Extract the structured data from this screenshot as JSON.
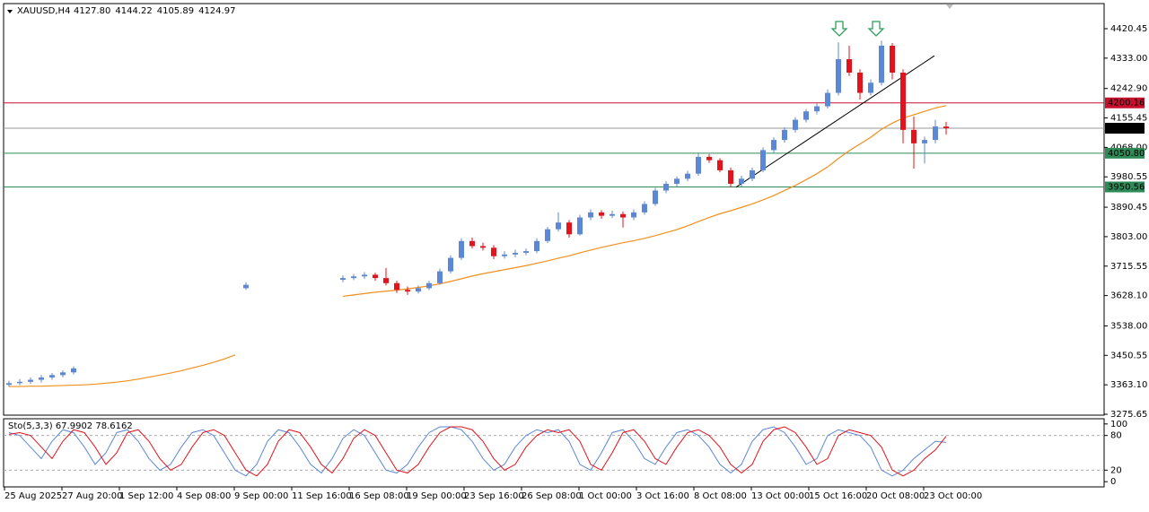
{
  "chart_data": {
    "type": "candlestick",
    "header": {
      "symbol": "XAUUSD,H4",
      "values": [
        "4127.80",
        "4144.22",
        "4105.89",
        "4124.97"
      ]
    },
    "ylim": [
      3273,
      4495
    ],
    "yticks": [
      {
        "value": 4420.45,
        "label": "4420.45"
      },
      {
        "value": 4333,
        "label": "4333.00"
      },
      {
        "value": 4242.9,
        "label": "4242.90"
      },
      4155.45,
      {
        "value": 4068,
        "label": "4068.00"
      },
      3980.55,
      3890.45,
      {
        "value": 3803,
        "label": "3803.00"
      },
      3715.55,
      {
        "value": 3628.1,
        "label": "3628.10"
      },
      {
        "value": 3538,
        "label": "3538.00"
      },
      3450.55,
      {
        "value": 3363.1,
        "label": "3363.10"
      },
      3275.65
    ],
    "x_labels": [
      "25 Aug 2025",
      "27 Aug 20:00",
      "1 Sep 12:00",
      "4 Sep 08:00",
      "9 Sep 00:00",
      "11 Sep 16:00",
      "16 Sep 08:00",
      "19 Sep 00:00",
      "23 Sep 16:00",
      "26 Sep 08:00",
      "1 Oct 00:00",
      "3 Oct 16:00",
      "8 Oct 08:00",
      "13 Oct 00:00",
      "15 Oct 16:00",
      "20 Oct 08:00",
      "23 Oct 00:00"
    ],
    "bull_color": "#5b87d6",
    "bear_color": "#e3131b",
    "candles": [
      [
        3363,
        3375,
        3358,
        3368
      ],
      [
        3368,
        3380,
        3362,
        3372
      ],
      [
        3372,
        3385,
        3366,
        3378
      ],
      [
        3378,
        3392,
        3370,
        3385
      ],
      [
        3385,
        3398,
        3378,
        3392
      ],
      [
        3392,
        3406,
        3385,
        3400
      ],
      [
        3400,
        3418,
        3394,
        3412
      ],
      null,
      null,
      null,
      null,
      null,
      null,
      null,
      null,
      null,
      null,
      null,
      null,
      null,
      null,
      null,
      [
        3650,
        3668,
        3645,
        3660
      ],
      null,
      null,
      null,
      null,
      null,
      null,
      null,
      null,
      [
        3675,
        3688,
        3668,
        3680
      ],
      [
        3680,
        3692,
        3674,
        3685
      ],
      [
        3685,
        3698,
        3678,
        3690
      ],
      [
        3690,
        3696,
        3672,
        3680
      ],
      [
        3680,
        3710,
        3658,
        3665
      ],
      [
        3665,
        3672,
        3636,
        3645
      ],
      [
        3645,
        3655,
        3630,
        3640
      ],
      [
        3640,
        3658,
        3634,
        3650
      ],
      [
        3650,
        3672,
        3644,
        3665
      ],
      [
        3665,
        3708,
        3660,
        3700
      ],
      [
        3700,
        3748,
        3694,
        3740
      ],
      [
        3740,
        3798,
        3734,
        3790
      ],
      [
        3790,
        3800,
        3768,
        3775
      ],
      [
        3775,
        3785,
        3762,
        3770
      ],
      [
        3770,
        3778,
        3736,
        3745
      ],
      [
        3745,
        3760,
        3738,
        3750
      ],
      [
        3750,
        3764,
        3742,
        3755
      ],
      [
        3755,
        3768,
        3748,
        3760
      ],
      [
        3760,
        3798,
        3754,
        3790
      ],
      [
        3790,
        3832,
        3784,
        3825
      ],
      [
        3825,
        3875,
        3818,
        3845
      ],
      [
        3845,
        3852,
        3800,
        3810
      ],
      [
        3810,
        3868,
        3806,
        3860
      ],
      [
        3860,
        3884,
        3852,
        3875
      ],
      [
        3875,
        3882,
        3856,
        3865
      ],
      [
        3865,
        3880,
        3858,
        3870
      ],
      [
        3870,
        3878,
        3830,
        3860
      ],
      [
        3860,
        3884,
        3852,
        3875
      ],
      [
        3875,
        3908,
        3868,
        3900
      ],
      [
        3900,
        3948,
        3894,
        3940
      ],
      [
        3940,
        3968,
        3932,
        3960
      ],
      [
        3960,
        3982,
        3952,
        3975
      ],
      [
        3975,
        3998,
        3968,
        3990
      ],
      [
        3990,
        4050,
        3984,
        4040
      ],
      [
        4040,
        4048,
        4022,
        4030
      ],
      [
        4030,
        4036,
        3994,
        4000
      ],
      [
        4000,
        4008,
        3950,
        3960
      ],
      [
        3960,
        3984,
        3952,
        3975
      ],
      [
        3975,
        4008,
        3968,
        4000
      ],
      [
        4000,
        4068,
        3994,
        4060
      ],
      [
        4060,
        4098,
        4052,
        4090
      ],
      [
        4090,
        4128,
        4082,
        4120
      ],
      [
        4120,
        4158,
        4112,
        4150
      ],
      [
        4150,
        4182,
        4142,
        4175
      ],
      [
        4175,
        4198,
        4166,
        4190
      ],
      [
        4190,
        4240,
        4184,
        4230
      ],
      [
        4230,
        4380,
        4222,
        4330
      ],
      [
        4330,
        4370,
        4280,
        4290
      ],
      [
        4290,
        4300,
        4210,
        4230
      ],
      [
        4230,
        4270,
        4222,
        4260
      ],
      [
        4260,
        4385,
        4252,
        4370
      ],
      [
        4370,
        4378,
        4270,
        4290
      ],
      [
        4290,
        4300,
        4080,
        4120
      ],
      [
        4120,
        4160,
        4005,
        4080
      ],
      [
        4080,
        4100,
        4020,
        4090
      ],
      [
        4090,
        4150,
        4080,
        4130
      ],
      [
        4130,
        4144,
        4106,
        4125
      ]
    ],
    "ma": {
      "color": "#f0901e",
      "values": [
        3358,
        3358,
        3359,
        3359,
        3360,
        3361,
        3362,
        3363,
        3365,
        3368,
        3371,
        3375,
        3380,
        3386,
        3392,
        3398,
        3405,
        3413,
        3421,
        3430,
        3440,
        3452,
        null,
        null,
        null,
        null,
        null,
        null,
        null,
        null,
        null,
        3626,
        3630,
        3634,
        3638,
        3641,
        3644,
        3648,
        3652,
        3657,
        3663,
        3670,
        3678,
        3686,
        3693,
        3699,
        3705,
        3711,
        3717,
        3724,
        3731,
        3739,
        3746,
        3755,
        3763,
        3771,
        3778,
        3785,
        3791,
        3798,
        3806,
        3815,
        3824,
        3835,
        3848,
        3860,
        3871,
        3880,
        3890,
        3900,
        3912,
        3925,
        3940,
        3955,
        3972,
        3990,
        4010,
        4035,
        4058,
        4078,
        4098,
        4122,
        4140,
        4155,
        4165,
        4175,
        4185,
        4192
      ]
    },
    "trendline": {
      "color": "#000000",
      "values": [
        3950,
        4340
      ]
    },
    "levels": [
      {
        "value": 4200.16,
        "color": "#c8102e"
      },
      {
        "value": 4124.97,
        "color": "#9a9a9a"
      },
      {
        "value": 4050.8,
        "label": "4050.80",
        "color": "#2e8b57"
      },
      {
        "value": 3950.56,
        "color": "#2e8b57"
      }
    ],
    "stochastic": {
      "label": "Sto(5,3,3) 67.9902 78.6162",
      "ylim": [
        -9,
        109
      ],
      "yticks": [
        100,
        80,
        20,
        0
      ],
      "series": [
        {
          "color": "#5b87d6",
          "values": [
            85,
            80,
            60,
            40,
            70,
            90,
            85,
            60,
            30,
            50,
            85,
            90,
            70,
            40,
            20,
            30,
            60,
            85,
            90,
            80,
            50,
            20,
            10,
            30,
            70,
            90,
            85,
            60,
            30,
            15,
            40,
            75,
            90,
            80,
            50,
            20,
            15,
            30,
            60,
            85,
            95,
            95,
            90,
            70,
            40,
            20,
            30,
            60,
            80,
            90,
            85,
            90,
            70,
            30,
            20,
            50,
            85,
            90,
            70,
            40,
            30,
            60,
            85,
            90,
            80,
            60,
            30,
            15,
            30,
            70,
            90,
            95,
            85,
            60,
            30,
            40,
            80,
            90,
            85,
            80,
            60,
            20,
            10,
            20,
            40,
            55,
            70,
            67.99
          ]
        },
        {
          "color": "#e3131b",
          "values": [
            82,
            85,
            80,
            60,
            40,
            70,
            90,
            85,
            60,
            30,
            50,
            85,
            90,
            70,
            40,
            20,
            30,
            60,
            85,
            90,
            80,
            50,
            20,
            10,
            30,
            70,
            90,
            85,
            60,
            30,
            15,
            40,
            75,
            90,
            80,
            50,
            20,
            15,
            30,
            60,
            85,
            95,
            95,
            90,
            70,
            40,
            20,
            30,
            60,
            80,
            90,
            85,
            90,
            70,
            30,
            20,
            50,
            85,
            90,
            70,
            40,
            30,
            60,
            85,
            90,
            80,
            60,
            30,
            15,
            30,
            70,
            90,
            95,
            85,
            60,
            30,
            40,
            80,
            90,
            85,
            80,
            60,
            20,
            10,
            20,
            40,
            55,
            78.62
          ]
        }
      ]
    }
  }
}
